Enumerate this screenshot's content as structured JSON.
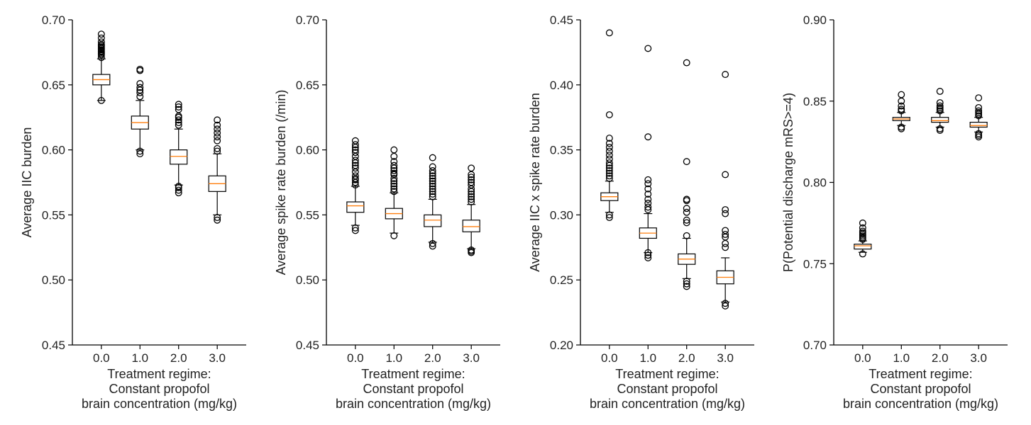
{
  "colors": {
    "box": "#000000",
    "median": "#ff7f0e",
    "flier": "#000000",
    "axis": "#000000"
  },
  "chart_data": [
    {
      "type": "box",
      "xlabel": [
        "Treatment regime:",
        "Constant propofol",
        "brain concentration (mg/kg)"
      ],
      "ylabel": "Average IIC burden",
      "categories": [
        "0.0",
        "1.0",
        "2.0",
        "3.0"
      ],
      "ylim": [
        0.45,
        0.7
      ],
      "yticks": [
        "0.45",
        "0.50",
        "0.55",
        "0.60",
        "0.65",
        "0.70"
      ],
      "boxes": [
        {
          "median": 0.654,
          "q1": 0.65,
          "q3": 0.658,
          "whislo": 0.638,
          "whishi": 0.67,
          "fliers": [
            0.638,
            0.671,
            0.673,
            0.674,
            0.675,
            0.676,
            0.677,
            0.678,
            0.679,
            0.68,
            0.681,
            0.683,
            0.686,
            0.689
          ]
        },
        {
          "median": 0.621,
          "q1": 0.616,
          "q3": 0.626,
          "whislo": 0.6,
          "whishi": 0.638,
          "fliers": [
            0.597,
            0.599,
            0.641,
            0.644,
            0.646,
            0.648,
            0.651,
            0.661,
            0.662
          ]
        },
        {
          "median": 0.595,
          "q1": 0.589,
          "q3": 0.6,
          "whislo": 0.573,
          "whishi": 0.616,
          "fliers": [
            0.567,
            0.569,
            0.571,
            0.572,
            0.619,
            0.621,
            0.623,
            0.625,
            0.626,
            0.631,
            0.633,
            0.635
          ]
        },
        {
          "median": 0.574,
          "q1": 0.568,
          "q3": 0.58,
          "whislo": 0.55,
          "whishi": 0.597,
          "fliers": [
            0.546,
            0.548,
            0.599,
            0.601,
            0.607,
            0.61,
            0.613,
            0.616,
            0.619,
            0.623
          ]
        }
      ]
    },
    {
      "type": "box",
      "xlabel": [
        "Treatment regime:",
        "Constant propofol",
        "brain concentration (mg/kg)"
      ],
      "ylabel": "Average spike rate burden (/min)",
      "categories": [
        "0.0",
        "1.0",
        "2.0",
        "3.0"
      ],
      "ylim": [
        0.45,
        0.7
      ],
      "yticks": [
        "0.45",
        "0.50",
        "0.55",
        "0.60",
        "0.65",
        "0.70"
      ],
      "boxes": [
        {
          "median": 0.557,
          "q1": 0.552,
          "q3": 0.56,
          "whislo": 0.542,
          "whishi": 0.572,
          "fliers": [
            0.538,
            0.54,
            0.573,
            0.575,
            0.577,
            0.578,
            0.58,
            0.583,
            0.586,
            0.588,
            0.59,
            0.592,
            0.595,
            0.598,
            0.6,
            0.602,
            0.604,
            0.607
          ]
        },
        {
          "median": 0.551,
          "q1": 0.547,
          "q3": 0.555,
          "whislo": 0.536,
          "whishi": 0.567,
          "fliers": [
            0.534,
            0.568,
            0.57,
            0.572,
            0.574,
            0.576,
            0.578,
            0.581,
            0.582,
            0.584,
            0.586,
            0.588,
            0.591,
            0.595,
            0.6
          ]
        },
        {
          "median": 0.546,
          "q1": 0.541,
          "q3": 0.55,
          "whislo": 0.529,
          "whishi": 0.562,
          "fliers": [
            0.526,
            0.528,
            0.564,
            0.566,
            0.568,
            0.57,
            0.572,
            0.574,
            0.576,
            0.578,
            0.58,
            0.582,
            0.584,
            0.587,
            0.594
          ]
        },
        {
          "median": 0.541,
          "q1": 0.537,
          "q3": 0.546,
          "whislo": 0.524,
          "whishi": 0.558,
          "fliers": [
            0.521,
            0.522,
            0.523,
            0.56,
            0.562,
            0.564,
            0.566,
            0.568,
            0.57,
            0.573,
            0.575,
            0.577,
            0.579,
            0.581,
            0.586
          ]
        }
      ]
    },
    {
      "type": "box",
      "xlabel": [
        "Treatment regime:",
        "Constant propofol",
        "brain concentration (mg/kg)"
      ],
      "ylabel": "Average IIC x spike rate burden",
      "categories": [
        "0.0",
        "1.0",
        "2.0",
        "3.0"
      ],
      "ylim": [
        0.2,
        0.45
      ],
      "yticks": [
        "0.20",
        "0.25",
        "0.30",
        "0.35",
        "0.40",
        "0.45"
      ],
      "boxes": [
        {
          "median": 0.314,
          "q1": 0.311,
          "q3": 0.317,
          "whislo": 0.302,
          "whishi": 0.326,
          "fliers": [
            0.298,
            0.3,
            0.328,
            0.33,
            0.332,
            0.334,
            0.336,
            0.338,
            0.34,
            0.343,
            0.346,
            0.349,
            0.352,
            0.355,
            0.359,
            0.377,
            0.44
          ]
        },
        {
          "median": 0.286,
          "q1": 0.282,
          "q3": 0.29,
          "whislo": 0.271,
          "whishi": 0.301,
          "fliers": [
            0.267,
            0.269,
            0.271,
            0.304,
            0.306,
            0.309,
            0.312,
            0.316,
            0.32,
            0.324,
            0.327,
            0.36,
            0.428
          ]
        },
        {
          "median": 0.266,
          "q1": 0.262,
          "q3": 0.27,
          "whislo": 0.251,
          "whishi": 0.282,
          "fliers": [
            0.245,
            0.247,
            0.249,
            0.284,
            0.294,
            0.296,
            0.302,
            0.305,
            0.311,
            0.312,
            0.341,
            0.417
          ]
        },
        {
          "median": 0.252,
          "q1": 0.247,
          "q3": 0.257,
          "whislo": 0.233,
          "whishi": 0.267,
          "fliers": [
            0.23,
            0.232,
            0.275,
            0.278,
            0.283,
            0.285,
            0.288,
            0.301,
            0.304,
            0.331,
            0.408
          ]
        }
      ]
    },
    {
      "type": "box",
      "xlabel": [
        "Treatment regime:",
        "Constant propofol",
        "brain concentration (mg/kg)"
      ],
      "ylabel": "P(Potential discharge mRS>=4)",
      "categories": [
        "0.0",
        "1.0",
        "2.0",
        "3.0"
      ],
      "ylim": [
        0.7,
        0.9
      ],
      "yticks": [
        "0.70",
        "0.75",
        "0.80",
        "0.85",
        "0.90"
      ],
      "boxes": [
        {
          "median": 0.761,
          "q1": 0.759,
          "q3": 0.762,
          "whislo": 0.757,
          "whishi": 0.764,
          "fliers": [
            0.756,
            0.765,
            0.766,
            0.767,
            0.768,
            0.769,
            0.77,
            0.772,
            0.775
          ]
        },
        {
          "median": 0.839,
          "q1": 0.838,
          "q3": 0.84,
          "whislo": 0.835,
          "whishi": 0.843,
          "fliers": [
            0.833,
            0.834,
            0.844,
            0.845,
            0.847,
            0.85,
            0.854
          ]
        },
        {
          "median": 0.838,
          "q1": 0.837,
          "q3": 0.84,
          "whislo": 0.834,
          "whishi": 0.843,
          "fliers": [
            0.832,
            0.833,
            0.844,
            0.845,
            0.846,
            0.847,
            0.849,
            0.856
          ]
        },
        {
          "median": 0.835,
          "q1": 0.834,
          "q3": 0.837,
          "whislo": 0.831,
          "whishi": 0.84,
          "fliers": [
            0.828,
            0.829,
            0.83,
            0.841,
            0.842,
            0.843,
            0.844,
            0.846,
            0.852
          ]
        }
      ]
    }
  ]
}
